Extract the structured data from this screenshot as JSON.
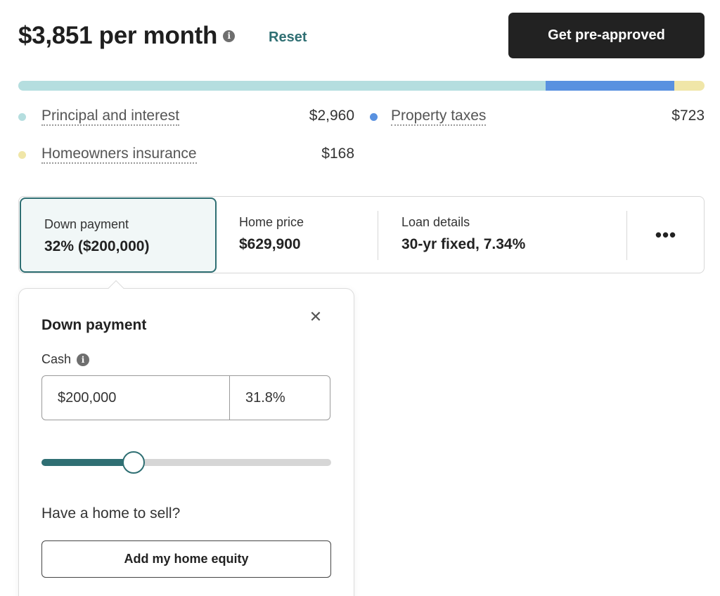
{
  "header": {
    "monthly_payment": "$3,851 per month",
    "info_icon": "info-icon",
    "reset_label": "Reset",
    "preapproved_label": "Get pre-approved"
  },
  "breakdown": {
    "colors": {
      "principal": "#b5dedf",
      "taxes": "#5991e0",
      "insurance": "#f0e6a8"
    },
    "shares": {
      "principal": 0.7687,
      "taxes": 0.1877,
      "insurance": 0.0436
    },
    "items": [
      {
        "label": "Principal and interest",
        "value": "$2,960"
      },
      {
        "label": "Property taxes",
        "value": "$723"
      },
      {
        "label": "Homeowners insurance",
        "value": "$168"
      }
    ]
  },
  "tabs": {
    "down_payment": {
      "title": "Down payment",
      "value": "32% ($200,000)"
    },
    "home_price": {
      "title": "Home price",
      "value": "$629,900"
    },
    "loan_details": {
      "title": "Loan details",
      "value": "30-yr fixed, 7.34%"
    },
    "more_label": "•••"
  },
  "popover": {
    "title": "Down payment",
    "close_label": "✕",
    "cash_label": "Cash",
    "amount_value": "$200,000",
    "percent_value": "31.8%",
    "slider_fraction": 0.318,
    "sell_question": "Have a home to sell?",
    "equity_button_label": "Add my home equity"
  }
}
